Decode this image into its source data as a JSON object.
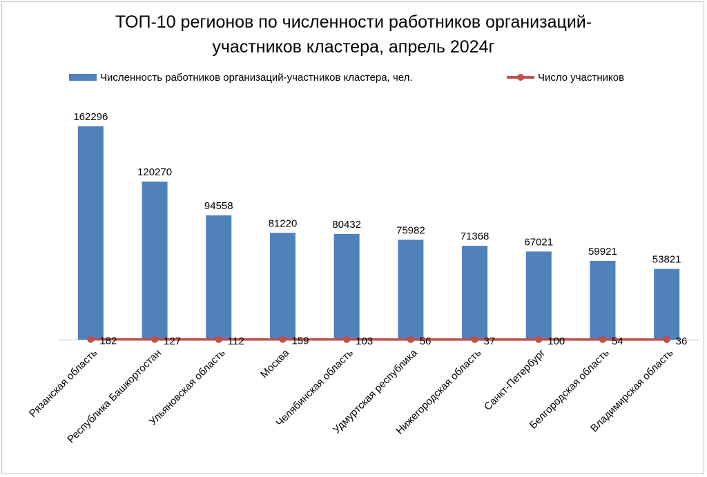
{
  "colors": {
    "bar": "#4f81bd",
    "line": "#c0504d",
    "axis": "#bfbfbf"
  },
  "chart_data": {
    "type": "bar",
    "title": "ТОП-10 регионов по численности работников организаций-участников кластера, апрель 2024г",
    "title_lines": [
      "ТОП-10 регионов по численности работников организаций-",
      "участников кластера, апрель 2024г"
    ],
    "legend_position": "top",
    "grid": false,
    "categories": [
      "Рязанская область",
      "Республика Башкортостан",
      "Ульяновская область",
      "Москва",
      "Челябинская область",
      "Удмуртская республика",
      "Нижегородская область",
      "Санкт-Петербург",
      "Белгородская область",
      "Владимирская область"
    ],
    "series": [
      {
        "name": "Численность работников организаций-участников кластера, чел.",
        "type": "bar",
        "values": [
          162296,
          120270,
          94558,
          81220,
          80432,
          75982,
          71368,
          67021,
          59921,
          53821
        ]
      },
      {
        "name": "Число участников",
        "type": "line",
        "values": [
          182,
          127,
          112,
          159,
          103,
          56,
          37,
          100,
          54,
          36
        ]
      }
    ]
  }
}
